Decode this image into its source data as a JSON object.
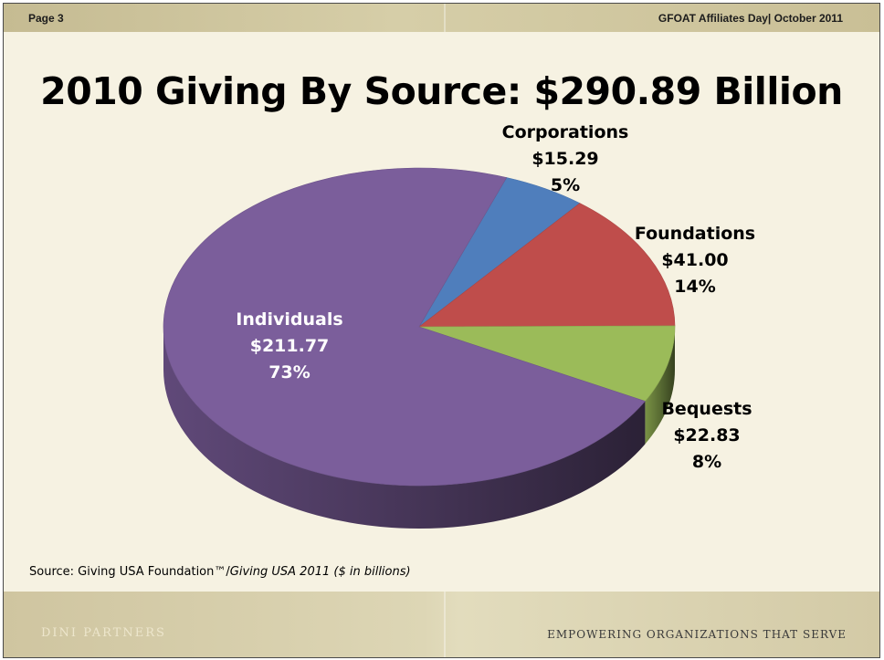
{
  "header": {
    "page": "Page 3",
    "event": "GFOAT Affiliates Day| October 2011"
  },
  "footer": {
    "brand": "DINI PARTNERS",
    "tagline": "EMPOWERING ORGANIZATIONS THAT SERVE"
  },
  "source": {
    "prefix": "Source:  Giving USA Foundation™/",
    "italic": "Giving USA 2011 ($ in billions)"
  },
  "colors": {
    "individuals": "#7b5e9b",
    "corporations": "#4f7ebc",
    "foundations": "#bf4d4b",
    "bequests": "#9bbb59",
    "background": "#f6f2e2"
  },
  "chart_data": {
    "type": "pie",
    "title": "2010 Giving By Source:  $290.89 Billion",
    "units": "$ in billions",
    "slices": [
      {
        "name": "Corporations",
        "value": 15.29,
        "value_label": "$15.29",
        "percent_label": "5%",
        "color": "#4f7ebc"
      },
      {
        "name": "Foundations",
        "value": 41.0,
        "value_label": "$41.00",
        "percent_label": "14%",
        "color": "#bf4d4b"
      },
      {
        "name": "Bequests",
        "value": 22.83,
        "value_label": "$22.83",
        "percent_label": "8%",
        "color": "#9bbb59"
      },
      {
        "name": "Individuals",
        "value": 211.77,
        "value_label": "$211.77",
        "percent_label": "73%",
        "color": "#7b5e9b"
      }
    ]
  }
}
